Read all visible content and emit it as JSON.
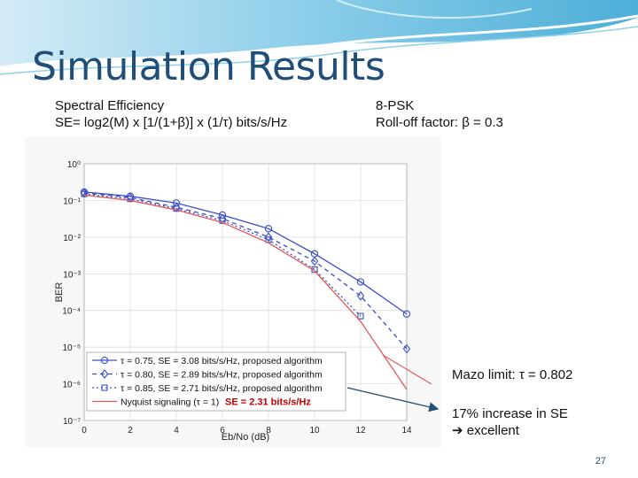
{
  "slide": {
    "title": "Simulation Results",
    "left_text": [
      "Spectral Efficiency",
      "SE= log2(M) x [1/(1+β)] x (1/τ)  bits/s/Hz"
    ],
    "right_text": [
      "8-PSK",
      "Roll-off factor: β = 0.3"
    ],
    "annotation_mazo": "Mazo limit: τ = 0.802",
    "annotation_increase": [
      "17% increase in SE",
      "➔ excellent"
    ],
    "page_number": "27",
    "colors": {
      "title": "#1f4e79",
      "blue": "#3b4fc8",
      "red": "#e05a5a",
      "arrow": "#1f4e79"
    }
  },
  "chart_data": {
    "type": "line",
    "xlabel": "Eb/No (dB)",
    "ylabel": "BER",
    "xlim": [
      0,
      14
    ],
    "ylim_log10": [
      -7,
      0
    ],
    "x_ticks": [
      "0",
      "2",
      "4",
      "6",
      "8",
      "10",
      "12",
      "14"
    ],
    "y_ticks": [
      "10⁰",
      "10⁻¹",
      "10⁻²",
      "10⁻³",
      "10⁻⁴",
      "10⁻⁵",
      "10⁻⁶",
      "10⁻⁷"
    ],
    "grid": true,
    "legend_position": "bottom-left",
    "series": [
      {
        "name": "τ = 0.75, SE = 3.08 bits/s/Hz, proposed algorithm",
        "x": [
          0,
          2,
          4,
          6,
          8,
          10,
          12,
          14
        ],
        "y": [
          0.17,
          0.13,
          0.085,
          0.04,
          0.017,
          0.0035,
          0.0006,
          8e-05
        ]
      },
      {
        "name": "τ = 0.80, SE = 2.89 bits/s/Hz, proposed algorithm",
        "x": [
          0,
          2,
          4,
          6,
          8,
          10,
          12,
          14
        ],
        "y": [
          0.16,
          0.12,
          0.065,
          0.032,
          0.01,
          0.0022,
          0.00025,
          9e-06
        ]
      },
      {
        "name": "τ = 0.85, SE = 2.71 bits/s/Hz, proposed algorithm",
        "x": [
          0,
          2,
          4,
          6,
          8,
          10,
          12
        ],
        "y": [
          0.15,
          0.11,
          0.06,
          0.028,
          0.0085,
          0.0013,
          7e-05
        ]
      },
      {
        "name": "Nyquist signaling (τ = 1)",
        "x": [
          0,
          2,
          4,
          6,
          8,
          10,
          12,
          14
        ],
        "y": [
          0.14,
          0.1,
          0.055,
          0.025,
          0.007,
          0.0012,
          5e-05,
          7e-07
        ]
      }
    ],
    "legend_extra": "SE = 2.31 bits/s/Hz"
  }
}
